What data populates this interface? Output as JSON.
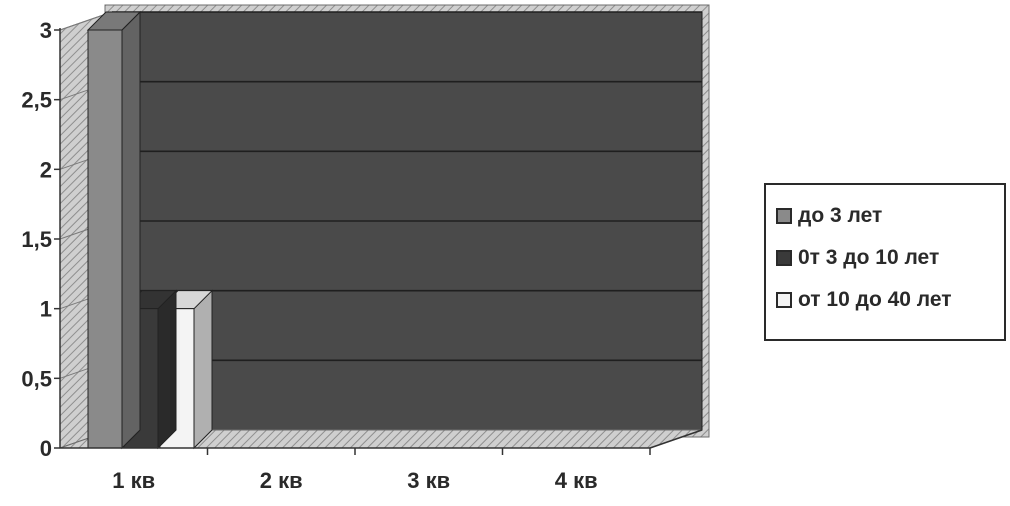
{
  "chart_data": {
    "type": "bar",
    "title": "",
    "xlabel": "",
    "ylabel": "",
    "categories": [
      "1 кв",
      "2 кв",
      "3 кв",
      "4 кв"
    ],
    "series": [
      {
        "name": "до 3 лет",
        "values": [
          3,
          0,
          0,
          0
        ],
        "color": "#8a8a8a"
      },
      {
        "name": "0т 3 до 10 лет",
        "values": [
          1,
          0,
          0,
          0
        ],
        "color": "#3a3a3a"
      },
      {
        "name": "от 10 до 40 лет",
        "values": [
          1,
          0,
          0,
          0
        ],
        "color": "#f4f4f4"
      }
    ],
    "yticks": [
      "0",
      "0,5",
      "1",
      "1,5",
      "2",
      "2,5",
      "3"
    ],
    "ylim": [
      0,
      3
    ],
    "grid": true,
    "legend_position": "right",
    "style": "3d-clustered",
    "wall_color": "#4a4a4a",
    "gridline_color": "#1f1f1f"
  }
}
